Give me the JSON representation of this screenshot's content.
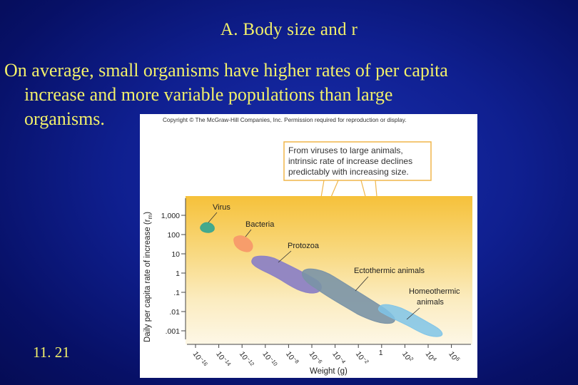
{
  "slide": {
    "title": "A. Body size and r",
    "body_line1": "On average, small organisms have higher rates of per capita",
    "body_line2": "increase and more variable populations than large",
    "body_line3": "organisms.",
    "slide_number": "11. 21"
  },
  "figure": {
    "copyright": "Copyright © The McGraw-Hill Companies, Inc. Permission required for reproduction or display.",
    "callout_line1": "From viruses to large animals,",
    "callout_line2": "intrinsic rate of increase declines",
    "callout_line3": "predictably with increasing size.",
    "y_axis_title": "Daily per capita rate of increase (r",
    "y_axis_sub": "m",
    "y_axis_close": ")",
    "x_axis_title": "Weight (g)",
    "y_ticks": [
      "1,000",
      "100",
      "10",
      "1",
      ".1",
      ".01",
      ".001"
    ],
    "x_ticks": [
      {
        "base": "10",
        "exp": "−16"
      },
      {
        "base": "10",
        "exp": "−14"
      },
      {
        "base": "10",
        "exp": "−12"
      },
      {
        "base": "10",
        "exp": "−10"
      },
      {
        "base": "10",
        "exp": "−8"
      },
      {
        "base": "10",
        "exp": "−6"
      },
      {
        "base": "10",
        "exp": "−4"
      },
      {
        "base": "10",
        "exp": "−2"
      },
      {
        "base": "1",
        "exp": ""
      },
      {
        "base": "10",
        "exp": "2"
      },
      {
        "base": "10",
        "exp": "4"
      },
      {
        "base": "10",
        "exp": "6"
      }
    ],
    "groups": {
      "virus": "Virus",
      "bacteria": "Bacteria",
      "protozoa": "Protozoa",
      "ectothermic": "Ectothermic animals",
      "homeothermic_line1": "Homeothermic",
      "homeothermic_line2": "animals"
    },
    "colors": {
      "virus": "#3aa68f",
      "bacteria": "#f79a6a",
      "protozoa": "#8d82c4",
      "ectothermic": "#7a93a6",
      "homeothermic": "#7fc4e8"
    }
  }
}
